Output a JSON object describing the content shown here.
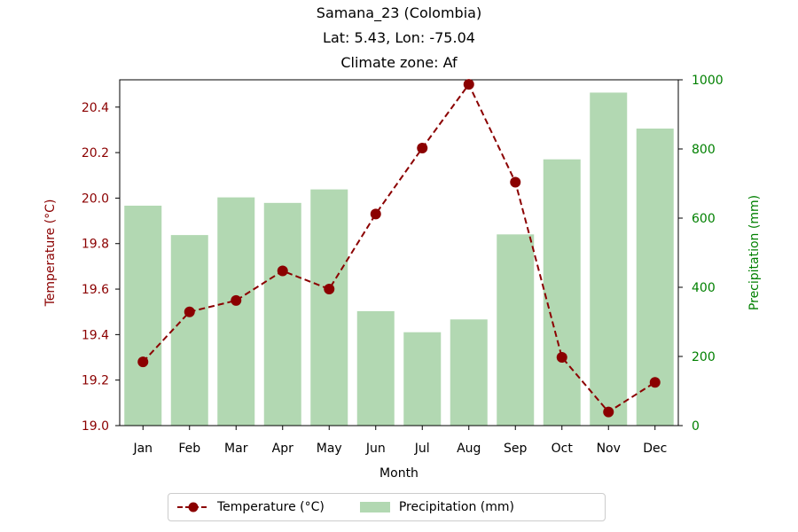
{
  "chart_data": {
    "type": "bar+line",
    "title_lines": [
      "Samana_23 (Colombia)",
      "Lat: 5.43, Lon: -75.04",
      "Climate zone: Af"
    ],
    "categories": [
      "Jan",
      "Feb",
      "Mar",
      "Apr",
      "May",
      "Jun",
      "Jul",
      "Aug",
      "Sep",
      "Oct",
      "Nov",
      "Dec"
    ],
    "xlabel": "Month",
    "y_left": {
      "label": "Temperature (°C)",
      "lim": [
        19.0,
        20.52
      ],
      "ticks": [
        19.0,
        19.2,
        19.4,
        19.6,
        19.8,
        20.0,
        20.2,
        20.4
      ],
      "tick_labels": [
        "19.0",
        "19.2",
        "19.4",
        "19.6",
        "19.8",
        "20.0",
        "20.2",
        "20.4"
      ],
      "color": "#8b0000"
    },
    "y_right": {
      "label": "Precipitation (mm)",
      "lim": [
        0,
        1000
      ],
      "ticks": [
        0,
        200,
        400,
        600,
        800,
        1000
      ],
      "tick_labels": [
        "0",
        "200",
        "400",
        "600",
        "800",
        "1000"
      ],
      "color": "#008000"
    },
    "series": [
      {
        "name": "Temperature (°C)",
        "type": "line",
        "axis": "left",
        "color": "#8b0000",
        "values": [
          19.28,
          19.5,
          19.55,
          19.68,
          19.6,
          19.93,
          20.22,
          20.5,
          20.07,
          19.3,
          19.06,
          19.19
        ]
      },
      {
        "name": "Precipitation (mm)",
        "type": "bar",
        "axis": "right",
        "color": "#b2d8b2",
        "values": [
          636,
          551,
          660,
          644,
          683,
          331,
          270,
          307,
          553,
          770,
          963,
          859
        ]
      }
    ],
    "legend_position": "bottom-center",
    "grid": false
  }
}
